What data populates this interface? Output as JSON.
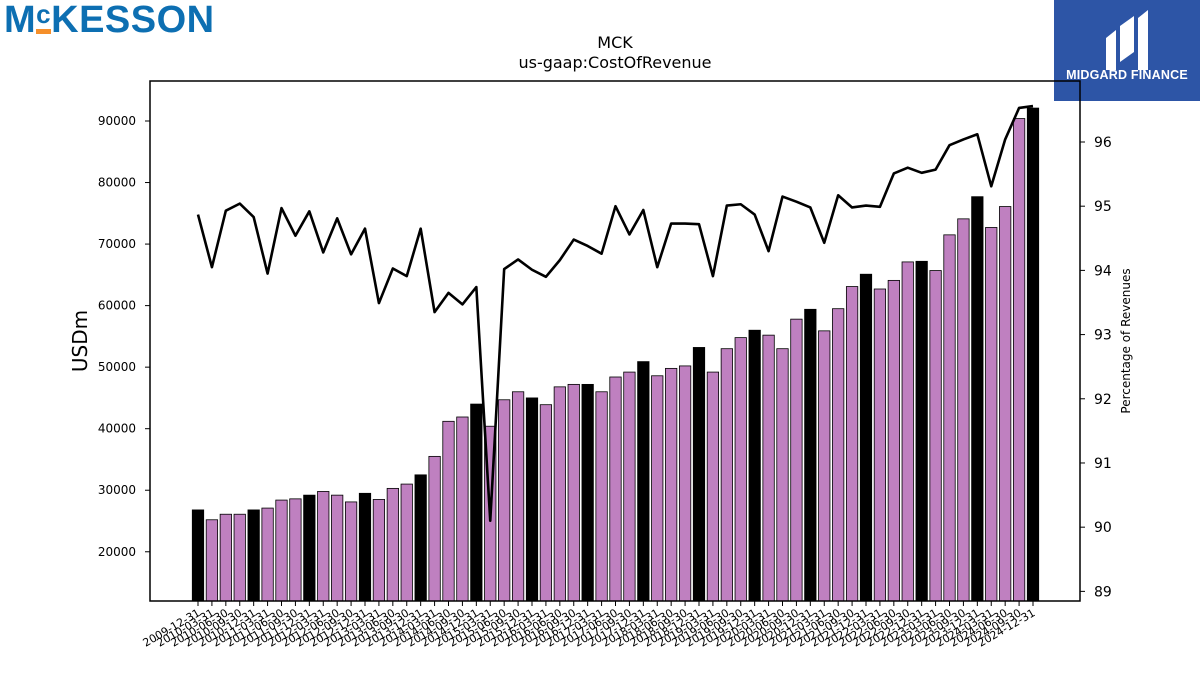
{
  "brand": {
    "text": "MCKESSON",
    "color": "#0d6fb2",
    "accent": "#f58f2a"
  },
  "partner": {
    "text": "MIDGARD FINANCE",
    "bg": "#2d55a6"
  },
  "chart_data": {
    "type": "bar",
    "title": "MCK",
    "subtitle": "us-gaap:CostOfRevenue",
    "ylabel": "USDm",
    "y2label": "Percentage of Revenues",
    "ylim": [
      12000,
      96500
    ],
    "y2lim": [
      88.85,
      96.95
    ],
    "yticks": [
      20000,
      30000,
      40000,
      50000,
      60000,
      70000,
      80000,
      90000
    ],
    "y2ticks": [
      89,
      90,
      91,
      92,
      93,
      94,
      95,
      96
    ],
    "colors": {
      "annual": "#000000",
      "quarter": "#bf80c0",
      "line": "#000000"
    },
    "categories": [
      "2009-12-31",
      "2010-03-31",
      "2010-06-30",
      "2010-09-30",
      "2010-12-31",
      "2011-03-31",
      "2011-06-30",
      "2011-09-30",
      "2011-12-31",
      "2012-03-31",
      "2012-06-30",
      "2012-09-30",
      "2012-12-31",
      "2013-03-31",
      "2013-06-30",
      "2013-09-30",
      "2013-12-31",
      "2014-03-31",
      "2014-06-30",
      "2014-09-30",
      "2014-12-31",
      "2015-03-31",
      "2015-06-30",
      "2015-09-30",
      "2015-12-31",
      "2016-03-31",
      "2016-06-30",
      "2016-09-30",
      "2016-12-31",
      "2017-03-31",
      "2017-06-30",
      "2017-09-30",
      "2017-12-31",
      "2018-03-31",
      "2018-06-30",
      "2018-09-30",
      "2018-12-31",
      "2019-03-31",
      "2019-06-30",
      "2019-09-30",
      "2019-12-31",
      "2020-03-31",
      "2020-06-30",
      "2020-09-30",
      "2020-12-31",
      "2021-03-31",
      "2021-06-30",
      "2021-09-30",
      "2021-12-31",
      "2022-03-31",
      "2022-06-30",
      "2022-09-30",
      "2022-12-31",
      "2023-03-31",
      "2023-06-30",
      "2023-09-30",
      "2023-12-31",
      "2024-03-31",
      "2024-06-30",
      "2024-09-30",
      "2024-12-31"
    ],
    "series": [
      {
        "values": [
          26800,
          25200,
          26100,
          26100,
          26800,
          27100,
          28400,
          28600,
          29200,
          29800,
          29200,
          28100,
          29500,
          28500,
          30300,
          31000,
          32500,
          35500,
          41200,
          41900,
          44000,
          40400,
          44700,
          46000,
          45000,
          43900,
          46800,
          47200,
          47200,
          46000,
          48400,
          49200,
          50900,
          48600,
          49800,
          50200,
          53200,
          49200,
          53000,
          54800,
          56000,
          55200,
          53000,
          57800,
          59400,
          55900,
          59500,
          63100,
          65100,
          62700,
          64100,
          67100,
          67200,
          65700,
          71500,
          74100,
          77700,
          72700,
          76100,
          90400,
          92100
        ]
      },
      {
        "values": [
          94.87,
          94.05,
          94.93,
          95.04,
          94.83,
          93.95,
          94.97,
          94.54,
          94.92,
          94.28,
          94.81,
          94.25,
          94.65,
          93.49,
          94.03,
          93.91,
          94.65,
          93.35,
          93.65,
          93.47,
          93.74,
          90.1,
          94.02,
          94.17,
          94.01,
          93.9,
          94.16,
          94.48,
          94.38,
          94.26,
          95,
          94.56,
          94.94,
          94.05,
          94.73,
          94.73,
          94.72,
          93.91,
          95.01,
          95.03,
          94.87,
          94.3,
          95.15,
          95.07,
          94.98,
          94.43,
          95.17,
          94.98,
          95.01,
          94.99,
          95.51,
          95.6,
          95.52,
          95.57,
          95.95,
          96.04,
          96.12,
          95.31,
          96.04,
          96.53,
          96.56
        ]
      }
    ]
  }
}
